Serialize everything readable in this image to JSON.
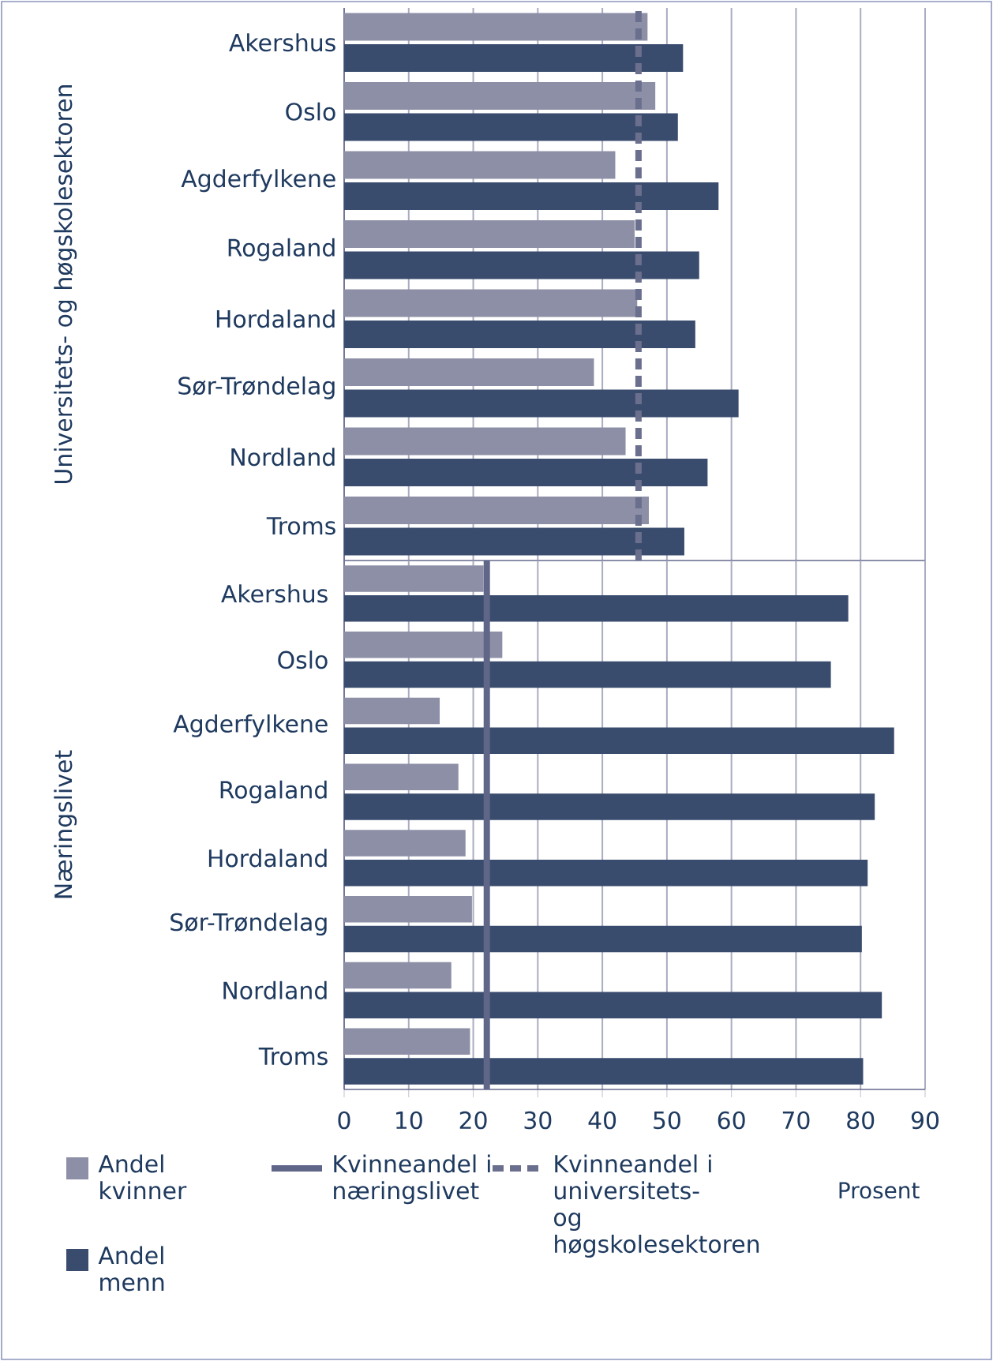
{
  "chart_data": [
    {
      "type": "bar",
      "orientation": "horizontal",
      "ylabel": "Universitets- og høgskolesektoren",
      "categories": [
        "Akershus",
        "Oslo",
        "Agderfylkene",
        "Rogaland",
        "Hordaland",
        "Sør-Trøndelag",
        "Nordland",
        "Troms"
      ],
      "series": [
        {
          "color": "#8c8fa6",
          "values": [
            47,
            48.2,
            42,
            45,
            45.4,
            38.7,
            43.6,
            47.2
          ]
        },
        {
          "color": "#3a4c6e",
          "values": [
            52.5,
            51.7,
            58,
            55,
            54.4,
            61.1,
            56.3,
            52.7
          ]
        }
      ],
      "xlim": [
        0,
        90
      ],
      "xticks": [
        0,
        10,
        20,
        30,
        40,
        50,
        60,
        70,
        80,
        90
      ],
      "grid": "x",
      "tick_labels": "y",
      "ref_lines": [
        {
          "axis": "x",
          "value": 45.6,
          "label": "Kvinneandel i universitets- og høgskolesektoren",
          "color": "#6b6f8e",
          "line_style": "dashed"
        }
      ]
    },
    {
      "type": "bar",
      "orientation": "horizontal",
      "ylabel": "Næringslivet",
      "xlabel": "Prosent",
      "categories": [
        "Akershus",
        "Oslo",
        "Agderfylkene",
        "Rogaland",
        "Hordaland",
        "Sør-Trøndelag",
        "Nordland",
        "Troms"
      ],
      "series": [
        {
          "name": "Andel kvinner",
          "color": "#8c8fa6",
          "values": [
            21.6,
            24.5,
            14.8,
            17.7,
            18.8,
            19.8,
            16.6,
            19.5
          ]
        },
        {
          "name": "Andel menn",
          "color": "#3a4c6e",
          "values": [
            78.1,
            75.4,
            85.2,
            82.2,
            81.1,
            80.2,
            83.3,
            80.4
          ]
        }
      ],
      "xlim": [
        0,
        90
      ],
      "xticks": [
        0,
        10,
        20,
        30,
        40,
        50,
        60,
        70,
        80,
        90
      ],
      "grid": "x",
      "legend": "bottom",
      "ref_lines": [
        {
          "axis": "x",
          "value": 22.1,
          "label": "Kvinneandel i næringslivet",
          "color": "#5f6688",
          "line_style": "solid"
        }
      ]
    }
  ]
}
